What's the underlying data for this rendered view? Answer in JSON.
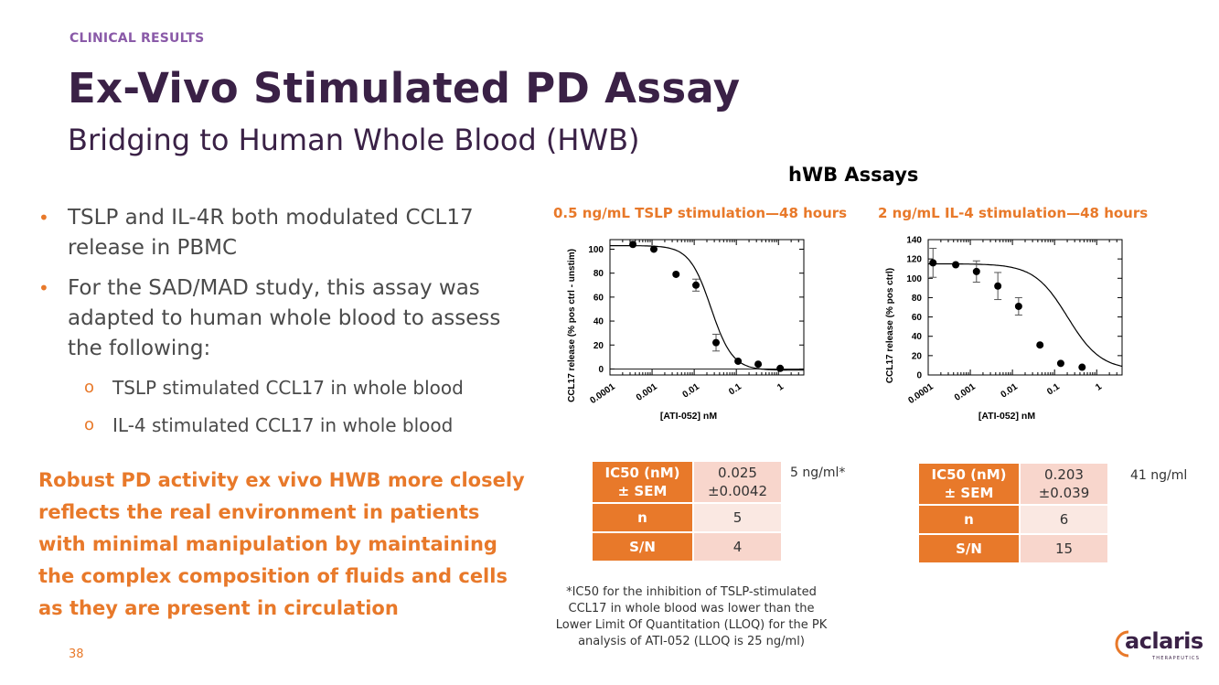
{
  "header": {
    "section_label": "CLINICAL RESULTS",
    "title": "Ex-Vivo Stimulated PD Assay",
    "subtitle": "Bridging to Human Whole Blood (HWB)"
  },
  "bullets": [
    "TSLP and IL-4R both modulated CCL17 release in PBMC",
    "For the SAD/MAD study, this assay was adapted to human whole blood to assess the following:"
  ],
  "sub_bullets": [
    "TSLP stimulated CCL17 in whole blood",
    "IL-4 stimulated CCL17 in whole blood"
  ],
  "sub_bullet_marker": "o",
  "callout": "Robust PD activity ex vivo HWB more closely reflects the real environment in patients with minimal manipulation by maintaining the complex composition of fluids and cells as they are present in circulation",
  "page_number": "38",
  "assays_heading": "hWB Assays",
  "colors": {
    "accent": "#e8792a",
    "title": "#3a2146",
    "section_label": "#8a5aa8",
    "table_header": "#e8792a",
    "table_cell": "#f8d6cc"
  },
  "chart_data": [
    {
      "type": "scatter",
      "title": "0.5 ng/mL TSLP stimulation—48 hours",
      "xlabel": "[ATI-052] nM",
      "ylabel": "CCL17 release (% pos ctrl - unstim)",
      "x_scale": "log",
      "xlim": [
        0.0001,
        4
      ],
      "ylim": [
        -5,
        108
      ],
      "x_ticks": [
        "0.0001",
        "0.001",
        "0.01",
        "0.1",
        "1"
      ],
      "y_ticks": [
        "0",
        "20",
        "40",
        "60",
        "80",
        "100"
      ],
      "points": [
        {
          "x": 0.00035,
          "y": 104
        },
        {
          "x": 0.0011,
          "y": 100
        },
        {
          "x": 0.0037,
          "y": 79
        },
        {
          "x": 0.011,
          "y": 70,
          "err": 5
        },
        {
          "x": 0.033,
          "y": 22,
          "err": 7
        },
        {
          "x": 0.11,
          "y": 6.5
        },
        {
          "x": 0.33,
          "y": 4
        },
        {
          "x": 1.1,
          "y": 0.5
        }
      ],
      "curve": {
        "top": 103,
        "bottom": -1,
        "ic50": 0.025,
        "hill": 1.7
      },
      "table": [
        {
          "label": "IC50 (nM)\n± SEM",
          "value": "0.025\n±0.0042"
        },
        {
          "label": "n",
          "value": "5"
        },
        {
          "label": "S/N",
          "value": "4"
        }
      ],
      "note": "5 ng/ml*"
    },
    {
      "type": "scatter",
      "title": "2 ng/mL IL-4 stimulation—48 hours",
      "xlabel": "[ATI-052] nM",
      "ylabel": "CCL17 release (% pos ctrl)",
      "x_scale": "log",
      "xlim": [
        0.0001,
        4
      ],
      "ylim": [
        0,
        140
      ],
      "x_ticks": [
        "0.0001",
        "0.001",
        "0.01",
        "0.1",
        "1"
      ],
      "y_ticks": [
        "0",
        "20",
        "40",
        "60",
        "80",
        "100",
        "120",
        "140"
      ],
      "points": [
        {
          "x": 0.00013,
          "y": 116,
          "err": 15
        },
        {
          "x": 0.00045,
          "y": 114
        },
        {
          "x": 0.0014,
          "y": 107,
          "err": 11
        },
        {
          "x": 0.0045,
          "y": 92,
          "err": 14
        },
        {
          "x": 0.014,
          "y": 71,
          "err": 9
        },
        {
          "x": 0.045,
          "y": 31
        },
        {
          "x": 0.14,
          "y": 12
        },
        {
          "x": 0.45,
          "y": 8
        }
      ],
      "curve": {
        "top": 115,
        "bottom": 5,
        "ic50": 0.203,
        "hill": 1.1
      },
      "table": [
        {
          "label": "IC50 (nM)\n± SEM",
          "value": "0.203\n±0.039"
        },
        {
          "label": "n",
          "value": "6"
        },
        {
          "label": "S/N",
          "value": "15"
        }
      ],
      "note": "41 ng/ml"
    }
  ],
  "footnote": "*IC50 for the inhibition of TSLP-stimulated CCL17 in whole blood was lower than the Lower Limit Of Quantitation (LLOQ) for the PK analysis of ATI-052 (LLOQ is 25 ng/ml)",
  "logo": {
    "text": "aclaris",
    "tagline": "THERAPEUTICS"
  }
}
